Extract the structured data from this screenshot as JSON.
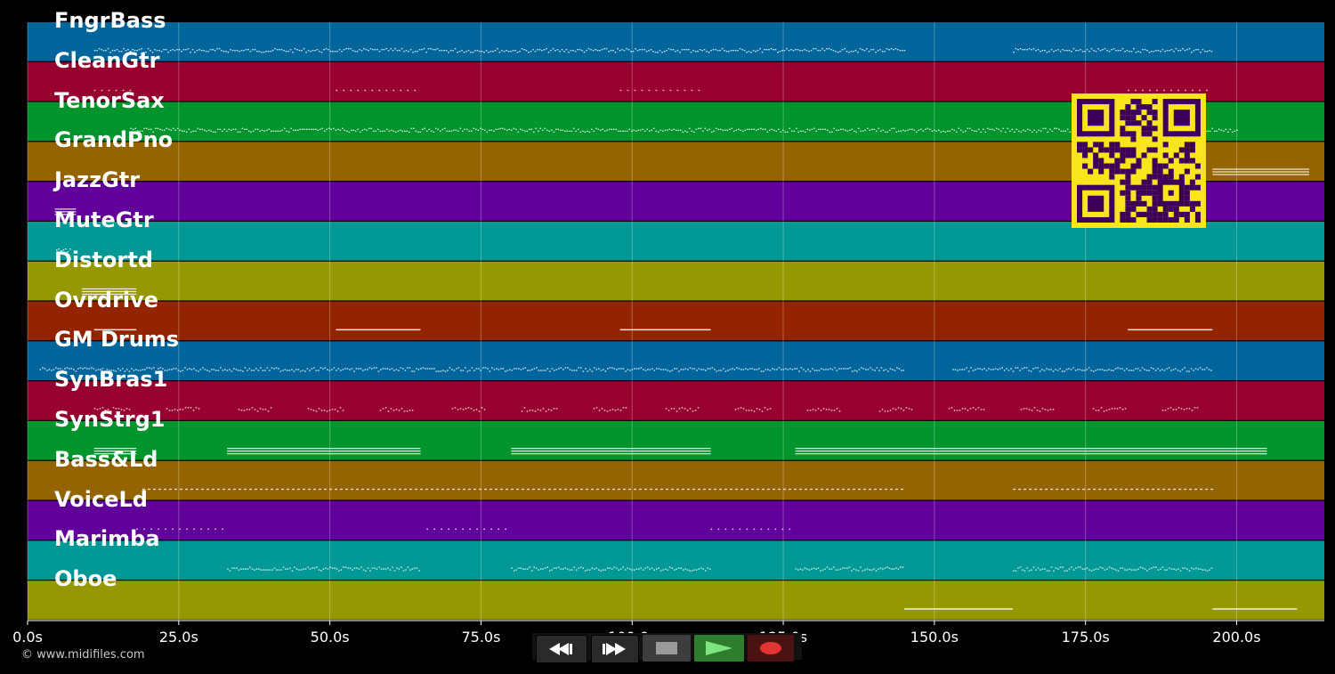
{
  "tracks": [
    {
      "name": "FngrBass",
      "color": "#00659b"
    },
    {
      "name": "CleanGtr",
      "color": "#97002f"
    },
    {
      "name": "TenorSax",
      "color": "#00942c"
    },
    {
      "name": "GrandPno",
      "color": "#946400"
    },
    {
      "name": "JazzGtr",
      "color": "#62009b"
    },
    {
      "name": "MuteGtr",
      "color": "#009895"
    },
    {
      "name": "Distortd",
      "color": "#969800"
    },
    {
      "name": "Ovrdrive",
      "color": "#942300"
    },
    {
      "name": "GM Drums",
      "color": "#00659b"
    },
    {
      "name": "SynBras1",
      "color": "#97002f"
    },
    {
      "name": "SynStrg1",
      "color": "#00942c"
    },
    {
      "name": "Bass&Ld",
      "color": "#946400"
    },
    {
      "name": "VoiceLd",
      "color": "#62009b"
    },
    {
      "name": "Marimba",
      "color": "#009895"
    },
    {
      "name": "Oboe",
      "color": "#969800"
    }
  ],
  "axis": {
    "ticks": [
      "0.0s",
      "25.0s",
      "50.0s",
      "75.0s",
      "100.0s",
      "125.0s",
      "150.0s",
      "175.0s",
      "200.0s"
    ],
    "tick_values": [
      0,
      25,
      50,
      75,
      100,
      125,
      150,
      175,
      200
    ],
    "max_seconds": 214.5
  },
  "copyright": "© www.midifiles.com",
  "controls": {
    "rewind_icon": "rewind-icon",
    "forward_icon": "fast-forward-icon",
    "stop_icon": "stop-icon",
    "play_icon": "play-icon",
    "record_icon": "record-icon"
  },
  "qr_code": {
    "foreground": "#3d0058",
    "background": "#f9e51c"
  },
  "note_segments": [
    {
      "track": 0,
      "start": 11,
      "end": 145,
      "pattern": "dense"
    },
    {
      "track": 0,
      "start": 163,
      "end": 196,
      "pattern": "dense"
    },
    {
      "track": 1,
      "start": 11,
      "end": 17,
      "pattern": "sparse"
    },
    {
      "track": 1,
      "start": 51,
      "end": 64,
      "pattern": "sparse"
    },
    {
      "track": 1,
      "start": 98,
      "end": 111,
      "pattern": "sparse"
    },
    {
      "track": 1,
      "start": 182,
      "end": 195,
      "pattern": "sparse"
    },
    {
      "track": 2,
      "start": 17,
      "end": 200,
      "pattern": "dense"
    },
    {
      "track": 3,
      "start": 196,
      "end": 212,
      "pattern": "chord"
    },
    {
      "track": 4,
      "start": 4.5,
      "end": 8,
      "pattern": "chord"
    },
    {
      "track": 5,
      "start": 4.7,
      "end": 7,
      "pattern": "dense"
    },
    {
      "track": 6,
      "start": 9,
      "end": 18,
      "pattern": "chord"
    },
    {
      "track": 7,
      "start": 11,
      "end": 18,
      "pattern": "line"
    },
    {
      "track": 7,
      "start": 51,
      "end": 65,
      "pattern": "line"
    },
    {
      "track": 7,
      "start": 98,
      "end": 113,
      "pattern": "line"
    },
    {
      "track": 7,
      "start": 182,
      "end": 196,
      "pattern": "line"
    },
    {
      "track": 8,
      "start": 2,
      "end": 145,
      "pattern": "dense"
    },
    {
      "track": 8,
      "start": 153,
      "end": 196,
      "pattern": "dense"
    },
    {
      "track": 9,
      "start": 11,
      "end": 196,
      "pattern": "bursts"
    },
    {
      "track": 10,
      "start": 11,
      "end": 18,
      "pattern": "chord"
    },
    {
      "track": 10,
      "start": 33,
      "end": 65,
      "pattern": "chord"
    },
    {
      "track": 10,
      "start": 80,
      "end": 113,
      "pattern": "chord"
    },
    {
      "track": 10,
      "start": 127,
      "end": 205,
      "pattern": "chord"
    },
    {
      "track": 11,
      "start": 19,
      "end": 145,
      "pattern": "dashed"
    },
    {
      "track": 11,
      "start": 163,
      "end": 196,
      "pattern": "dashed"
    },
    {
      "track": 12,
      "start": 18,
      "end": 33,
      "pattern": "sparse"
    },
    {
      "track": 12,
      "start": 66,
      "end": 80,
      "pattern": "sparse"
    },
    {
      "track": 12,
      "start": 113,
      "end": 127,
      "pattern": "sparse"
    },
    {
      "track": 13,
      "start": 33,
      "end": 65,
      "pattern": "dense"
    },
    {
      "track": 13,
      "start": 80,
      "end": 113,
      "pattern": "dense"
    },
    {
      "track": 13,
      "start": 127,
      "end": 145,
      "pattern": "dense"
    },
    {
      "track": 13,
      "start": 163,
      "end": 196,
      "pattern": "dense"
    },
    {
      "track": 14,
      "start": 145,
      "end": 163,
      "pattern": "line"
    },
    {
      "track": 14,
      "start": 196,
      "end": 210,
      "pattern": "line"
    }
  ]
}
